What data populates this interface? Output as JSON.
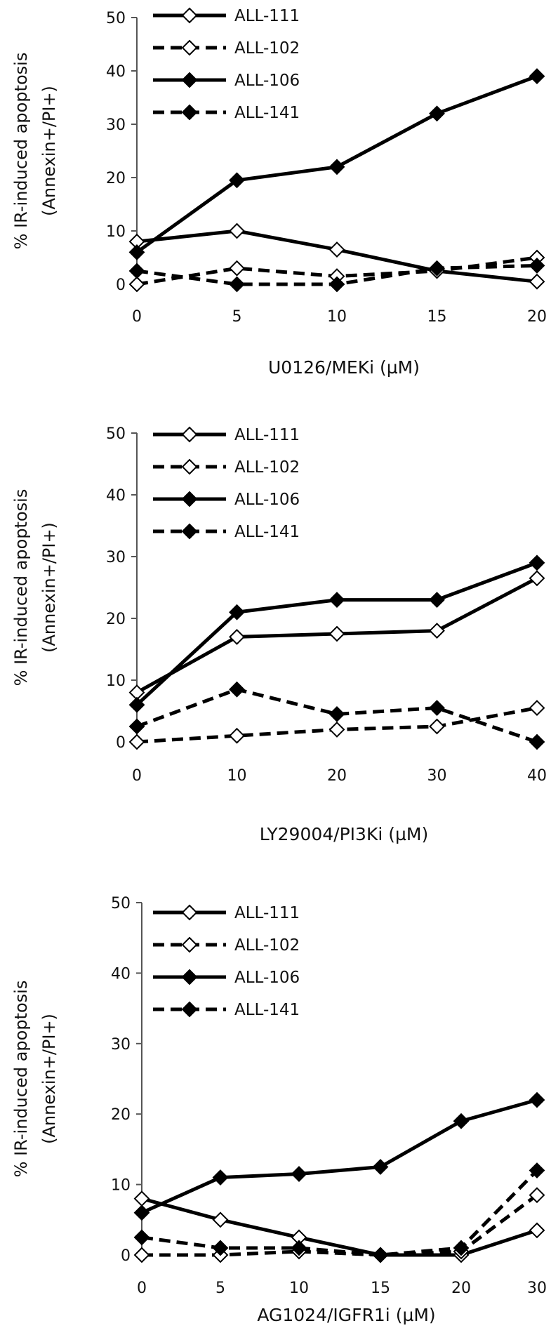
{
  "chart_data": [
    {
      "type": "line",
      "x": [
        0,
        5,
        10,
        15,
        20
      ],
      "xlabel": "U0126/MEKi (µM)",
      "ylabel": [
        "% IR-induced apoptosis",
        "(Annexin+/PI+)"
      ],
      "xlim": [
        0,
        20
      ],
      "ylim": [
        0,
        50
      ],
      "yticks": [
        0,
        10,
        20,
        30,
        40,
        50
      ],
      "legend_position": "top-left",
      "series": [
        {
          "name": "ALL-111",
          "style": "solid",
          "marker": "open-diamond",
          "values": [
            8,
            10,
            6.5,
            2.5,
            0.5
          ]
        },
        {
          "name": "ALL-102",
          "style": "dashed",
          "marker": "open-diamond",
          "values": [
            0,
            3,
            1.5,
            2.5,
            5
          ]
        },
        {
          "name": "ALL-106",
          "style": "solid",
          "marker": "filled-diamond",
          "values": [
            6,
            19.5,
            22,
            32,
            39
          ]
        },
        {
          "name": "ALL-141",
          "style": "dashed",
          "marker": "filled-diamond",
          "values": [
            2.5,
            0,
            0,
            3,
            3.5
          ]
        }
      ]
    },
    {
      "type": "line",
      "x": [
        0,
        10,
        20,
        30,
        40
      ],
      "xlabel": "LY29004/PI3Ki (µM)",
      "ylabel": [
        "% IR-induced apoptosis",
        "(Annexin+/PI+)"
      ],
      "xlim": [
        0,
        40
      ],
      "ylim": [
        0,
        50
      ],
      "yticks": [
        0,
        10,
        20,
        30,
        40,
        50
      ],
      "legend_position": "top-left",
      "series": [
        {
          "name": "ALL-111",
          "style": "solid",
          "marker": "open-diamond",
          "values": [
            8,
            17,
            17.5,
            18,
            26.5
          ]
        },
        {
          "name": "ALL-102",
          "style": "dashed",
          "marker": "open-diamond",
          "values": [
            0,
            1,
            2,
            2.5,
            5.5
          ]
        },
        {
          "name": "ALL-106",
          "style": "solid",
          "marker": "filled-diamond",
          "values": [
            6,
            21,
            23,
            23,
            29
          ]
        },
        {
          "name": "ALL-141",
          "style": "dashed",
          "marker": "filled-diamond",
          "values": [
            2.5,
            8.5,
            4.5,
            5.5,
            0
          ]
        }
      ]
    },
    {
      "type": "line",
      "x": [
        0,
        5,
        10,
        15,
        20,
        30
      ],
      "xlabel": "AG1024/IGFR1i (µM)",
      "ylabel": [
        "% IR-induced apoptosis",
        "(Annexin+/PI+)"
      ],
      "ylim": [
        0,
        50
      ],
      "yticks": [
        0,
        10,
        20,
        30,
        40,
        50
      ],
      "legend_position": "top-left",
      "series": [
        {
          "name": "ALL-111",
          "style": "solid",
          "marker": "open-diamond",
          "values": [
            8,
            5,
            2.5,
            0,
            0,
            3.5
          ]
        },
        {
          "name": "ALL-102",
          "style": "dashed",
          "marker": "open-diamond",
          "values": [
            0,
            0,
            0.5,
            0,
            0.5,
            8.5
          ]
        },
        {
          "name": "ALL-106",
          "style": "solid",
          "marker": "filled-diamond",
          "values": [
            6,
            11,
            11.5,
            12.5,
            19,
            22
          ]
        },
        {
          "name": "ALL-141",
          "style": "dashed",
          "marker": "filled-diamond",
          "values": [
            2.5,
            1,
            1,
            0,
            1,
            12
          ]
        }
      ]
    }
  ]
}
